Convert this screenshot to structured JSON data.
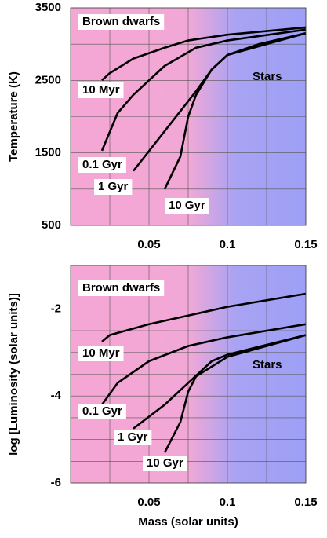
{
  "chart_data": [
    {
      "type": "line",
      "ylabel": "Temperature (K)",
      "annotations": [
        "Brown dwarfs",
        "Stars"
      ],
      "xlim": [
        0,
        0.15
      ],
      "xticks": [
        0.05,
        0.1,
        0.15
      ],
      "minor_xticks": [
        0.025,
        0.075,
        0.125
      ],
      "ylim": [
        500,
        3500
      ],
      "yticks": [
        500,
        1500,
        2500,
        3500
      ],
      "minor_yticks": [
        1000,
        2000,
        3000
      ],
      "grid": true,
      "series": [
        {
          "name": "10 Myr",
          "color": "#000000",
          "x": [
            0.02,
            0.025,
            0.04,
            0.06,
            0.075,
            0.1,
            0.15
          ],
          "values": [
            2500,
            2600,
            2800,
            2950,
            3050,
            3130,
            3230
          ]
        },
        {
          "name": "0.1 Gyr",
          "color": "#000000",
          "x": [
            0.02,
            0.03,
            0.04,
            0.06,
            0.08,
            0.1,
            0.15
          ],
          "values": [
            1530,
            2050,
            2300,
            2700,
            2950,
            3050,
            3200
          ]
        },
        {
          "name": "1 Gyr",
          "color": "#000000",
          "x": [
            0.04,
            0.06,
            0.08,
            0.09,
            0.1,
            0.12,
            0.15
          ],
          "values": [
            1250,
            1800,
            2350,
            2650,
            2850,
            3000,
            3150
          ]
        },
        {
          "name": "10 Gyr",
          "color": "#000000",
          "x": [
            0.06,
            0.07,
            0.075,
            0.08,
            0.09,
            0.1,
            0.15
          ],
          "values": [
            1000,
            1450,
            2000,
            2300,
            2650,
            2850,
            3150
          ]
        }
      ]
    },
    {
      "type": "line",
      "ylabel": "log [Luminosity (solar units)]",
      "xlabel": "Mass (solar units)",
      "annotations": [
        "Brown dwarfs",
        "Stars"
      ],
      "xlim": [
        0,
        0.15
      ],
      "xticks": [
        0.05,
        0.1,
        0.15
      ],
      "minor_xticks": [
        0.025,
        0.075,
        0.125
      ],
      "ylim": [
        -6,
        -1
      ],
      "yticks": [
        -2,
        -4,
        -6
      ],
      "minor_yticks": [
        -1.5,
        -2.5,
        -3,
        -3.5,
        -4.5,
        -5,
        -5.5
      ],
      "grid": true,
      "series": [
        {
          "name": "10 Myr",
          "color": "#000000",
          "x": [
            0.02,
            0.025,
            0.05,
            0.075,
            0.1,
            0.15
          ],
          "values": [
            -2.75,
            -2.6,
            -2.35,
            -2.15,
            -1.95,
            -1.65
          ]
        },
        {
          "name": "0.1 Gyr",
          "color": "#000000",
          "x": [
            0.02,
            0.03,
            0.05,
            0.075,
            0.1,
            0.15
          ],
          "values": [
            -4.2,
            -3.7,
            -3.2,
            -2.85,
            -2.65,
            -2.35
          ]
        },
        {
          "name": "1 Gyr",
          "color": "#000000",
          "x": [
            0.04,
            0.06,
            0.075,
            0.09,
            0.1,
            0.15
          ],
          "values": [
            -4.75,
            -4.2,
            -3.7,
            -3.2,
            -3.05,
            -2.6
          ]
        },
        {
          "name": "10 Gyr",
          "color": "#000000",
          "x": [
            0.06,
            0.07,
            0.075,
            0.08,
            0.1,
            0.15
          ],
          "values": [
            -5.3,
            -4.6,
            -3.9,
            -3.55,
            -3.1,
            -2.6
          ]
        }
      ]
    }
  ]
}
